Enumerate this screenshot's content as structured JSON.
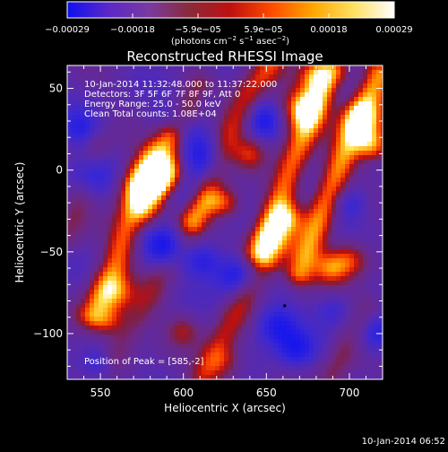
{
  "chart_data": {
    "type": "heatmap",
    "title": "Reconstructed RHESSI Image",
    "xlabel": "Heliocentric X (arcsec)",
    "ylabel": "Heliocentric Y (arcsec)",
    "xlim": [
      530,
      720
    ],
    "ylim": [
      -128,
      64
    ],
    "x_ticks": [
      550,
      600,
      650,
      700
    ],
    "x_tick_labels": [
      "550",
      "600",
      "650",
      "700"
    ],
    "y_ticks": [
      -100,
      -50,
      0,
      50
    ],
    "y_tick_labels": [
      "−100",
      "−50",
      "0",
      "50"
    ],
    "colorbar": {
      "range": [
        -0.00029,
        0.00029
      ],
      "tick_labels": [
        "−0.00029",
        "−0.00018",
        "−5.9e−05",
        "5.9e−05",
        "0.00018",
        "0.00029"
      ],
      "unit_label_parts": [
        "(photons cm",
        "−2",
        " s",
        "−1",
        " asec",
        "−2",
        ")"
      ],
      "colors": [
        "#1010f0",
        "#5a28c8",
        "#7a3aa0",
        "#8a2a3a",
        "#c01010",
        "#ff4a00",
        "#ffa500",
        "#ffe060",
        "#ffffff"
      ]
    },
    "annotations": [
      "10-Jan-2014 11:32:48.000 to 11:37:22.000",
      "Detectors: 3F 5F 6F 7F 8F 9F, Att 0",
      "Energy Range: 25.0 - 50.0 keV",
      "Clean     Total counts: 1.08E+04"
    ],
    "peak_label": "Position of Peak = [585,-2]",
    "peak_position": [
      585,
      -2
    ],
    "marker_position": [
      661,
      -83
    ],
    "ridges": [
      {
        "points": [
          [
            545,
            -88
          ],
          [
            560,
            -55
          ],
          [
            572,
            -15
          ],
          [
            580,
            8
          ],
          [
            590,
            20
          ]
        ],
        "strength": 0.72
      },
      {
        "points": [
          [
            578,
            -25
          ],
          [
            588,
            2
          ],
          [
            598,
            28
          ],
          [
            610,
            50
          ]
        ],
        "strength": 0.55
      },
      {
        "points": [
          [
            605,
            -30
          ],
          [
            618,
            -5
          ],
          [
            628,
            22
          ],
          [
            640,
            48
          ],
          [
            652,
            64
          ]
        ],
        "strength": 0.6
      },
      {
        "points": [
          [
            645,
            -50
          ],
          [
            655,
            -28
          ],
          [
            665,
            2
          ],
          [
            678,
            38
          ],
          [
            690,
            60
          ]
        ],
        "strength": 0.8
      },
      {
        "points": [
          [
            670,
            -62
          ],
          [
            682,
            -30
          ],
          [
            693,
            0
          ],
          [
            705,
            30
          ],
          [
            718,
            58
          ]
        ],
        "strength": 0.85
      },
      {
        "points": [
          [
            560,
            -112
          ],
          [
            572,
            -92
          ],
          [
            585,
            -68
          ],
          [
            600,
            -44
          ],
          [
            615,
            -20
          ]
        ],
        "strength": 0.35
      },
      {
        "points": [
          [
            612,
            -125
          ],
          [
            625,
            -100
          ],
          [
            638,
            -76
          ],
          [
            650,
            -58
          ]
        ],
        "strength": 0.5
      },
      {
        "points": [
          [
            690,
            -125
          ],
          [
            700,
            -105
          ],
          [
            712,
            -85
          ]
        ],
        "strength": 0.35
      },
      {
        "points": [
          [
            530,
            -40
          ],
          [
            540,
            -10
          ],
          [
            548,
            15
          ]
        ],
        "strength": 0.3
      }
    ],
    "blobs": [
      {
        "x": 575,
        "y": -10,
        "v": 0.85,
        "r": 9
      },
      {
        "x": 588,
        "y": -2,
        "v": 0.95,
        "r": 8
      },
      {
        "x": 560,
        "y": -75,
        "v": 0.7,
        "r": 8
      },
      {
        "x": 555,
        "y": -92,
        "v": 0.65,
        "r": 7
      },
      {
        "x": 672,
        "y": 38,
        "v": 0.95,
        "r": 9
      },
      {
        "x": 680,
        "y": 58,
        "v": 0.85,
        "r": 7
      },
      {
        "x": 708,
        "y": 30,
        "v": 0.95,
        "r": 9
      },
      {
        "x": 714,
        "y": 15,
        "v": 0.9,
        "r": 7
      },
      {
        "x": 700,
        "y": -55,
        "v": 0.75,
        "r": 8
      },
      {
        "x": 688,
        "y": -60,
        "v": 0.7,
        "r": 7
      },
      {
        "x": 655,
        "y": -45,
        "v": 0.8,
        "r": 8
      },
      {
        "x": 662,
        "y": -30,
        "v": 0.75,
        "r": 7
      },
      {
        "x": 625,
        "y": -20,
        "v": 0.7,
        "r": 7
      },
      {
        "x": 640,
        "y": 10,
        "v": 0.55,
        "r": 7
      },
      {
        "x": 625,
        "y": -118,
        "v": 0.5,
        "r": 8
      },
      {
        "x": 600,
        "y": -98,
        "v": 0.45,
        "r": 7
      },
      {
        "x": 596,
        "y": 25,
        "v": -0.55,
        "r": 10
      },
      {
        "x": 615,
        "y": 5,
        "v": -0.6,
        "r": 10
      },
      {
        "x": 600,
        "y": -15,
        "v": -0.45,
        "r": 8
      },
      {
        "x": 590,
        "y": -48,
        "v": -0.7,
        "r": 9
      },
      {
        "x": 612,
        "y": -55,
        "v": -0.55,
        "r": 8
      },
      {
        "x": 543,
        "y": -3,
        "v": -0.6,
        "r": 9
      },
      {
        "x": 538,
        "y": 25,
        "v": -0.45,
        "r": 8
      },
      {
        "x": 632,
        "y": -65,
        "v": -0.6,
        "r": 9
      },
      {
        "x": 656,
        "y": -95,
        "v": -0.65,
        "r": 9
      },
      {
        "x": 668,
        "y": -110,
        "v": -0.55,
        "r": 8
      },
      {
        "x": 648,
        "y": 30,
        "v": -0.5,
        "r": 8
      },
      {
        "x": 715,
        "y": -100,
        "v": -0.55,
        "r": 9
      },
      {
        "x": 700,
        "y": -20,
        "v": -0.45,
        "r": 8
      },
      {
        "x": 548,
        "y": -118,
        "v": -0.4,
        "r": 7
      },
      {
        "x": 612,
        "y": 45,
        "v": -0.4,
        "r": 7
      },
      {
        "x": 690,
        "y": -85,
        "v": -0.35,
        "r": 7
      }
    ]
  },
  "footer": {
    "timestamp": "10-Jan-2014 06:52"
  }
}
